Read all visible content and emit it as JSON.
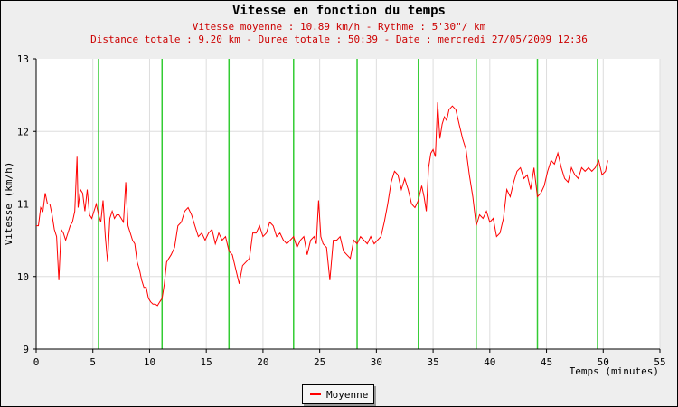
{
  "chart_data": {
    "type": "line",
    "title": "Vitesse en fonction du temps",
    "subtitle_1": "Vitesse moyenne : 10.89 km/h - Rythme : 5'30\"/ km",
    "subtitle_2": "Distance totale : 9.20 km - Duree totale : 50:39 - Date : mercredi 27/05/2009 12:36",
    "xlabel": "Temps (minutes)",
    "ylabel": "Vitesse (km/h)",
    "xlim": [
      0,
      55
    ],
    "ylim": [
      9,
      13
    ],
    "xticks": [
      "0",
      "5",
      "10",
      "15",
      "20",
      "25",
      "30",
      "35",
      "40",
      "45",
      "50",
      "55"
    ],
    "yticks": [
      "9",
      "10",
      "11",
      "12",
      "13"
    ],
    "grid": true,
    "legend_position": "bottom-center",
    "km_markers_minutes": [
      5.5,
      11.1,
      17.0,
      22.7,
      28.3,
      33.7,
      38.8,
      44.2,
      49.5
    ],
    "series": [
      {
        "name": "Moyenne",
        "color": "#ff0000",
        "x": [
          0.0,
          0.2,
          0.4,
          0.6,
          0.8,
          1.0,
          1.2,
          1.4,
          1.6,
          1.8,
          2.0,
          2.2,
          2.4,
          2.6,
          2.8,
          3.0,
          3.2,
          3.4,
          3.6,
          3.7,
          3.9,
          4.1,
          4.3,
          4.5,
          4.7,
          4.9,
          5.1,
          5.3,
          5.5,
          5.7,
          5.9,
          6.1,
          6.3,
          6.5,
          6.7,
          6.9,
          7.1,
          7.3,
          7.5,
          7.7,
          7.9,
          8.1,
          8.3,
          8.5,
          8.7,
          8.9,
          9.1,
          9.3,
          9.5,
          9.7,
          9.9,
          10.1,
          10.3,
          10.5,
          10.7,
          10.9,
          11.1,
          11.3,
          11.5,
          11.7,
          11.9,
          12.2,
          12.5,
          12.8,
          13.1,
          13.4,
          13.7,
          14.0,
          14.3,
          14.6,
          14.9,
          15.2,
          15.5,
          15.8,
          16.1,
          16.4,
          16.7,
          17.0,
          17.3,
          17.6,
          17.9,
          18.2,
          18.5,
          18.8,
          19.1,
          19.4,
          19.7,
          20.0,
          20.3,
          20.6,
          20.9,
          21.2,
          21.5,
          21.8,
          22.1,
          22.4,
          22.7,
          23.0,
          23.3,
          23.6,
          23.9,
          24.2,
          24.5,
          24.7,
          24.9,
          25.1,
          25.3,
          25.6,
          25.9,
          26.2,
          26.5,
          26.8,
          27.1,
          27.4,
          27.7,
          28.0,
          28.3,
          28.6,
          28.9,
          29.2,
          29.5,
          29.8,
          30.1,
          30.4,
          30.7,
          31.0,
          31.3,
          31.6,
          31.9,
          32.2,
          32.5,
          32.8,
          33.1,
          33.4,
          33.7,
          34.0,
          34.2,
          34.4,
          34.6,
          34.8,
          35.0,
          35.2,
          35.4,
          35.6,
          35.8,
          36.0,
          36.2,
          36.4,
          36.7,
          37.0,
          37.3,
          37.6,
          37.9,
          38.2,
          38.5,
          38.8,
          39.1,
          39.4,
          39.7,
          40.0,
          40.3,
          40.6,
          40.9,
          41.2,
          41.5,
          41.8,
          42.1,
          42.4,
          42.7,
          43.0,
          43.3,
          43.6,
          43.9,
          44.2,
          44.5,
          44.8,
          45.1,
          45.4,
          45.7,
          46.0,
          46.3,
          46.6,
          46.9,
          47.2,
          47.5,
          47.8,
          48.1,
          48.4,
          48.7,
          49.0,
          49.3,
          49.6,
          49.9,
          50.2,
          50.4
        ],
        "values": [
          10.7,
          10.7,
          10.95,
          10.9,
          11.15,
          11.0,
          11.0,
          10.85,
          10.65,
          10.55,
          9.95,
          10.65,
          10.6,
          10.5,
          10.6,
          10.7,
          10.75,
          10.9,
          11.65,
          10.95,
          11.2,
          11.15,
          10.9,
          11.2,
          10.85,
          10.8,
          10.9,
          11.0,
          10.85,
          10.75,
          11.05,
          10.55,
          10.2,
          10.8,
          10.9,
          10.8,
          10.85,
          10.85,
          10.8,
          10.75,
          11.3,
          10.7,
          10.6,
          10.5,
          10.45,
          10.2,
          10.1,
          9.95,
          9.85,
          9.85,
          9.7,
          9.65,
          9.62,
          9.62,
          9.6,
          9.65,
          9.7,
          9.9,
          10.2,
          10.25,
          10.3,
          10.4,
          10.7,
          10.75,
          10.9,
          10.95,
          10.85,
          10.7,
          10.55,
          10.6,
          10.5,
          10.6,
          10.65,
          10.45,
          10.6,
          10.5,
          10.55,
          10.35,
          10.3,
          10.1,
          9.9,
          10.15,
          10.2,
          10.25,
          10.6,
          10.6,
          10.7,
          10.55,
          10.6,
          10.75,
          10.7,
          10.55,
          10.6,
          10.5,
          10.45,
          10.5,
          10.55,
          10.4,
          10.5,
          10.55,
          10.3,
          10.5,
          10.55,
          10.45,
          11.05,
          10.55,
          10.45,
          10.4,
          9.95,
          10.5,
          10.5,
          10.55,
          10.35,
          10.3,
          10.25,
          10.5,
          10.45,
          10.55,
          10.5,
          10.45,
          10.55,
          10.45,
          10.5,
          10.55,
          10.75,
          11.0,
          11.3,
          11.45,
          11.4,
          11.2,
          11.35,
          11.2,
          11.0,
          10.95,
          11.05,
          11.25,
          11.1,
          10.9,
          11.5,
          11.7,
          11.75,
          11.65,
          12.4,
          11.9,
          12.1,
          12.2,
          12.15,
          12.3,
          12.35,
          12.3,
          12.1,
          11.9,
          11.75,
          11.4,
          11.1,
          10.7,
          10.85,
          10.8,
          10.9,
          10.75,
          10.8,
          10.55,
          10.6,
          10.8,
          11.2,
          11.1,
          11.3,
          11.45,
          11.5,
          11.35,
          11.4,
          11.2,
          11.5,
          11.1,
          11.15,
          11.25,
          11.45,
          11.6,
          11.55,
          11.7,
          11.5,
          11.35,
          11.3,
          11.5,
          11.4,
          11.35,
          11.5,
          11.45,
          11.5,
          11.45,
          11.5,
          11.6,
          11.4,
          11.45,
          11.6
        ]
      }
    ]
  }
}
